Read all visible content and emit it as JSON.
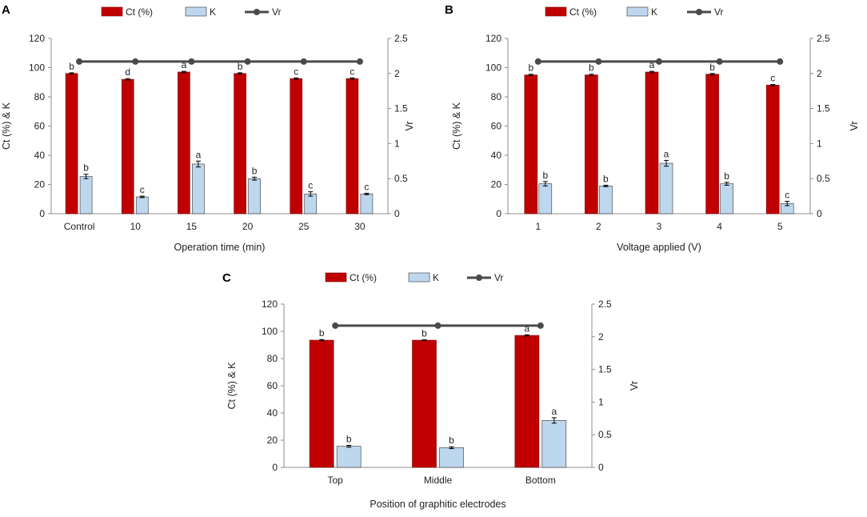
{
  "colors": {
    "ct": "#C00000",
    "k": "#BDD7EE",
    "vr": "#4A4A4A",
    "axis": "#8C8C8C"
  },
  "legend": {
    "ct": "Ct (%)",
    "k": "K",
    "vr": "Vr"
  },
  "chart_data": [
    {
      "panel": "A",
      "type": "bar",
      "xlabel": "Operation time (min)",
      "ylabel_left": "Ct (%) & K",
      "ylabel_right": "Vr",
      "ylim_left": [
        0,
        120
      ],
      "ylim_right": [
        0,
        2.5
      ],
      "yticks_left": [
        "0",
        "20",
        "40",
        "60",
        "80",
        "100",
        "120"
      ],
      "yticks_right": [
        "0",
        "0.5",
        "1",
        "1.5",
        "2",
        "2.5"
      ],
      "categories": [
        "Control",
        "10",
        "15",
        "20",
        "25",
        "30"
      ],
      "series": [
        {
          "name": "Ct (%)",
          "values": [
            96,
            92,
            97,
            96,
            92.5,
            92.5
          ],
          "errors": [
            0.5,
            0.5,
            0.5,
            0.5,
            0.5,
            0.5
          ],
          "labels": [
            "b",
            "d",
            "a",
            "b",
            "c",
            "c"
          ]
        },
        {
          "name": "K",
          "values": [
            25.5,
            11.5,
            34,
            24,
            13.5,
            13.5
          ],
          "errors": [
            1.5,
            0.5,
            2,
            1,
            1.5,
            0.5
          ],
          "labels": [
            "b",
            "c",
            "a",
            "b",
            "c",
            "c"
          ]
        },
        {
          "name": "Vr",
          "values": [
            2.17,
            2.17,
            2.17,
            2.17,
            2.17,
            2.17
          ]
        }
      ]
    },
    {
      "panel": "B",
      "type": "bar",
      "xlabel": "Voltage applied (V)",
      "ylabel_left": "Ct (%) & K",
      "ylabel_right": "Vr",
      "ylim_left": [
        0,
        120
      ],
      "ylim_right": [
        0,
        2.5
      ],
      "yticks_left": [
        "0",
        "20",
        "40",
        "60",
        "80",
        "100",
        "120"
      ],
      "yticks_right": [
        "0",
        "0.5",
        "1",
        "1.5",
        "2",
        "2.5"
      ],
      "categories": [
        "1",
        "2",
        "3",
        "4",
        "5"
      ],
      "series": [
        {
          "name": "Ct (%)",
          "values": [
            95,
            95,
            97,
            95.5,
            88
          ],
          "errors": [
            0.5,
            0.5,
            0.5,
            0.5,
            0.5
          ],
          "labels": [
            "b",
            "b",
            "a",
            "b",
            "c"
          ]
        },
        {
          "name": "K",
          "values": [
            20.5,
            19,
            34.5,
            20.5,
            7
          ],
          "errors": [
            1.5,
            0.5,
            2,
            1,
            1.5
          ],
          "labels": [
            "b",
            "b",
            "a",
            "b",
            "c"
          ]
        },
        {
          "name": "Vr",
          "values": [
            2.17,
            2.17,
            2.17,
            2.17,
            2.17
          ]
        }
      ]
    },
    {
      "panel": "C",
      "type": "bar",
      "xlabel": "Position of graphitic electrodes",
      "ylabel_left": "Ct (%) & K",
      "ylabel_right": "Vr",
      "ylim_left": [
        0,
        120
      ],
      "ylim_right": [
        0,
        2.5
      ],
      "yticks_left": [
        "0",
        "20",
        "40",
        "60",
        "80",
        "100",
        "120"
      ],
      "yticks_right": [
        "0",
        "0.5",
        "1",
        "1.5",
        "2",
        "2.5"
      ],
      "categories": [
        "Top",
        "Middle",
        "Bottom"
      ],
      "series": [
        {
          "name": "Ct (%)",
          "values": [
            93.5,
            93.5,
            97
          ],
          "errors": [
            0.5,
            0.3,
            0.5
          ],
          "labels": [
            "b",
            "b",
            "a"
          ]
        },
        {
          "name": "K",
          "values": [
            15.5,
            14.5,
            34.5
          ],
          "errors": [
            0.7,
            0.7,
            2
          ],
          "labels": [
            "b",
            "b",
            "a"
          ]
        },
        {
          "name": "Vr",
          "values": [
            2.17,
            2.17,
            2.17
          ]
        }
      ]
    }
  ]
}
